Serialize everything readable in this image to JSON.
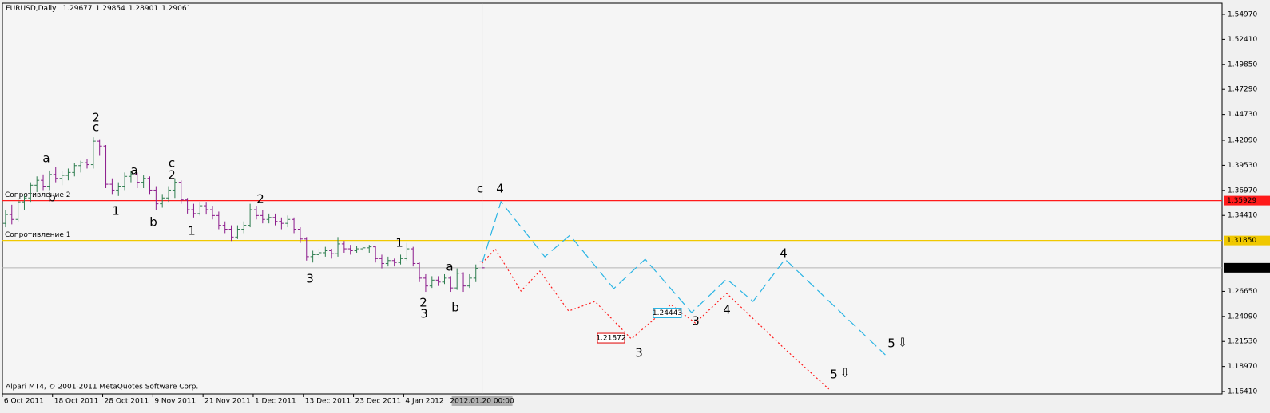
{
  "chart_data": {
    "type": "ohlc",
    "symbol": "EURUSD,Daily",
    "footer": "Alpari MT4, © 2001-2011 MetaQuotes Software Corp.",
    "up_color": "#2e7d4f",
    "down_color": "#8b1a8b",
    "xlim": [
      -0.5,
      194
    ],
    "ylim": [
      1.1617,
      1.5611
    ],
    "yticks": [
      {
        "value": 1.5497,
        "label": "1.54970"
      },
      {
        "value": 1.5241,
        "label": "1.52410"
      },
      {
        "value": 1.4985,
        "label": "1.49850"
      },
      {
        "value": 1.4729,
        "label": "1.47290"
      },
      {
        "value": 1.4473,
        "label": "1.44730"
      },
      {
        "value": 1.4209,
        "label": "1.42090"
      },
      {
        "value": 1.3953,
        "label": "1.39530"
      },
      {
        "value": 1.3697,
        "label": "1.36970"
      },
      {
        "value": 1.3441,
        "label": "1.34410"
      },
      {
        "value": 1.2665,
        "label": "1.26650"
      },
      {
        "value": 1.2409,
        "label": "1.24090"
      },
      {
        "value": 1.2153,
        "label": "1.21530"
      },
      {
        "value": 1.1897,
        "label": "1.18970"
      },
      {
        "value": 1.1641,
        "label": "1.16410"
      }
    ],
    "xticks": [
      {
        "value": 0,
        "label": "6 Oct 2011"
      },
      {
        "value": 8,
        "label": "18 Oct 2011"
      },
      {
        "value": 16,
        "label": "28 Oct 2011"
      },
      {
        "value": 24,
        "label": "9 Nov 2011"
      },
      {
        "value": 32,
        "label": "21 Nov 2011"
      },
      {
        "value": 40,
        "label": "1 Dec 2011"
      },
      {
        "value": 48,
        "label": "13 Dec 2011"
      },
      {
        "value": 56,
        "label": "23 Dec 2011"
      },
      {
        "value": 64,
        "label": "4 Jan 2012"
      }
    ],
    "cursor": {
      "value": 76,
      "label": "2012.01.20 00:00"
    },
    "bars": [
      [
        1.336,
        1.35,
        1.332,
        1.345
      ],
      [
        1.345,
        1.355,
        1.335,
        1.34
      ],
      [
        1.34,
        1.362,
        1.338,
        1.358
      ],
      [
        1.358,
        1.365,
        1.35,
        1.362
      ],
      [
        1.362,
        1.378,
        1.358,
        1.375
      ],
      [
        1.375,
        1.384,
        1.368,
        1.38
      ],
      [
        1.38,
        1.386,
        1.37,
        1.374
      ],
      [
        1.374,
        1.39,
        1.37,
        1.386
      ],
      [
        1.386,
        1.394,
        1.378,
        1.382
      ],
      [
        1.382,
        1.39,
        1.375,
        1.385
      ],
      [
        1.385,
        1.392,
        1.38,
        1.388
      ],
      [
        1.388,
        1.398,
        1.384,
        1.395
      ],
      [
        1.395,
        1.4,
        1.388,
        1.398
      ],
      [
        1.398,
        1.402,
        1.392,
        1.396
      ],
      [
        1.396,
        1.424,
        1.392,
        1.42
      ],
      [
        1.42,
        1.422,
        1.405,
        1.415
      ],
      [
        1.415,
        1.416,
        1.372,
        1.376
      ],
      [
        1.376,
        1.382,
        1.366,
        1.37
      ],
      [
        1.37,
        1.378,
        1.364,
        1.374
      ],
      [
        1.374,
        1.388,
        1.37,
        1.384
      ],
      [
        1.384,
        1.39,
        1.378,
        1.386
      ],
      [
        1.386,
        1.388,
        1.372,
        1.378
      ],
      [
        1.378,
        1.385,
        1.372,
        1.382
      ],
      [
        1.382,
        1.384,
        1.366,
        1.37
      ],
      [
        1.37,
        1.374,
        1.35,
        1.356
      ],
      [
        1.356,
        1.366,
        1.352,
        1.362
      ],
      [
        1.362,
        1.374,
        1.358,
        1.37
      ],
      [
        1.37,
        1.382,
        1.362,
        1.378
      ],
      [
        1.378,
        1.38,
        1.356,
        1.36
      ],
      [
        1.36,
        1.362,
        1.346,
        1.35
      ],
      [
        1.35,
        1.356,
        1.342,
        1.346
      ],
      [
        1.346,
        1.358,
        1.344,
        1.354
      ],
      [
        1.354,
        1.358,
        1.345,
        1.35
      ],
      [
        1.35,
        1.354,
        1.34,
        1.344
      ],
      [
        1.344,
        1.348,
        1.33,
        1.334
      ],
      [
        1.334,
        1.338,
        1.326,
        1.33
      ],
      [
        1.33,
        1.334,
        1.318,
        1.322
      ],
      [
        1.322,
        1.334,
        1.32,
        1.33
      ],
      [
        1.33,
        1.338,
        1.326,
        1.334
      ],
      [
        1.334,
        1.356,
        1.332,
        1.35
      ],
      [
        1.35,
        1.354,
        1.34,
        1.344
      ],
      [
        1.344,
        1.35,
        1.336,
        1.34
      ],
      [
        1.34,
        1.346,
        1.336,
        1.342
      ],
      [
        1.342,
        1.346,
        1.334,
        1.338
      ],
      [
        1.338,
        1.342,
        1.33,
        1.336
      ],
      [
        1.336,
        1.344,
        1.332,
        1.34
      ],
      [
        1.34,
        1.342,
        1.326,
        1.33
      ],
      [
        1.33,
        1.332,
        1.316,
        1.32
      ],
      [
        1.32,
        1.322,
        1.298,
        1.302
      ],
      [
        1.302,
        1.308,
        1.296,
        1.304
      ],
      [
        1.304,
        1.31,
        1.3,
        1.306
      ],
      [
        1.306,
        1.312,
        1.302,
        1.308
      ],
      [
        1.308,
        1.31,
        1.3,
        1.305
      ],
      [
        1.305,
        1.322,
        1.302,
        1.315
      ],
      [
        1.315,
        1.318,
        1.306,
        1.31
      ],
      [
        1.31,
        1.314,
        1.304,
        1.308
      ],
      [
        1.308,
        1.313,
        1.306,
        1.31
      ],
      [
        1.31,
        1.312,
        1.308,
        1.311
      ],
      [
        1.311,
        1.314,
        1.306,
        1.312
      ],
      [
        1.312,
        1.313,
        1.296,
        1.3
      ],
      [
        1.3,
        1.304,
        1.29,
        1.295
      ],
      [
        1.295,
        1.302,
        1.292,
        1.298
      ],
      [
        1.298,
        1.3,
        1.292,
        1.296
      ],
      [
        1.296,
        1.304,
        1.294,
        1.3
      ],
      [
        1.3,
        1.316,
        1.298,
        1.31
      ],
      [
        1.31,
        1.312,
        1.292,
        1.295
      ],
      [
        1.295,
        1.296,
        1.276,
        1.28
      ],
      [
        1.28,
        1.284,
        1.266,
        1.272
      ],
      [
        1.272,
        1.282,
        1.27,
        1.278
      ],
      [
        1.278,
        1.282,
        1.272,
        1.276
      ],
      [
        1.276,
        1.284,
        1.274,
        1.28
      ],
      [
        1.28,
        1.282,
        1.266,
        1.27
      ],
      [
        1.27,
        1.29,
        1.268,
        1.285
      ],
      [
        1.285,
        1.286,
        1.266,
        1.272
      ],
      [
        1.272,
        1.284,
        1.27,
        1.28
      ],
      [
        1.28,
        1.294,
        1.276,
        1.29
      ],
      [
        1.29677,
        1.29854,
        1.28901,
        1.29061
      ]
    ],
    "levels": [
      {
        "name": "Сопротивление 2",
        "value": 1.35929,
        "color": "#ff1a1a",
        "text_color": "#ffffff"
      },
      {
        "name": "Сопротивление 1",
        "value": 1.3185,
        "value_label": "1.31850",
        "color": "#f0c800",
        "text_color": "#ffffff"
      }
    ],
    "price_line_color": "#b4b4b4",
    "forecasts": [
      {
        "color": "#2ab4e4",
        "dash": "12,6",
        "x": [
          76,
          79,
          86,
          90,
          97,
          102,
          109.4,
          115,
          119.2,
          124.3,
          140.3
        ],
        "values": [
          1.2954,
          1.3581,
          1.3019,
          1.3239,
          1.2693,
          1.2994,
          1.2448,
          1.2791,
          1.2562,
          1.2994,
          1.2016
        ]
      },
      {
        "color": "#ff1a1a",
        "dash": "2,3",
        "x": [
          76,
          78.1,
          82.2,
          85.2,
          89.8,
          94,
          99.8,
          106.1,
          110,
          115,
          124.6,
          131.3
        ],
        "values": [
          1.2954,
          1.31,
          1.2668,
          1.2872,
          1.2464,
          1.2562,
          1.2179,
          1.253,
          1.2342,
          1.2644,
          1.2057,
          1.1666
        ]
      }
    ],
    "price_labels": [
      {
        "value": 1.21872,
        "color": "#e00000"
      },
      {
        "value": 1.24443,
        "color": "#2ab4e4"
      }
    ],
    "annotations": [
      {
        "text": "2",
        "color": "#000000"
      },
      {
        "text": "c",
        "color": "#e0a0d8"
      },
      {
        "text": "a",
        "color": "#e0a0d8"
      },
      {
        "text": "b",
        "color": "#e0a0d8"
      },
      {
        "text": "a",
        "color": "#e0a0d8"
      },
      {
        "text": "c",
        "color": "#e0a0d8"
      },
      {
        "text": "2",
        "color": "#b0b0b0"
      },
      {
        "text": "1",
        "color": "#b0b0b0"
      },
      {
        "text": "b",
        "color": "#e0a0d8"
      },
      {
        "text": "1",
        "color": "#f8c8b0"
      },
      {
        "text": "2",
        "color": "#f8d8c8"
      },
      {
        "text": "3",
        "color": "#f8c0a8"
      },
      {
        "text": "1",
        "color": "#f8d8c8"
      },
      {
        "text": "a",
        "color": "#e0a0d8"
      },
      {
        "text": "2",
        "color": "#f8c8b0"
      },
      {
        "text": "3",
        "color": "#b0b0b0"
      },
      {
        "text": "b",
        "color": "#e0a0d8"
      },
      {
        "text": "c",
        "color": "#e0a0d8"
      },
      {
        "text": "4",
        "color": "#b0b0b0"
      },
      {
        "text": "3",
        "color": "#e00000"
      },
      {
        "text": "3",
        "color": "#2ab4e4"
      },
      {
        "text": "4",
        "color": "#e00000"
      },
      {
        "text": "4",
        "color": "#2ab4e4"
      },
      {
        "text": "5",
        "color": "#2ab4e4"
      },
      {
        "text": "5",
        "color": "#e00000"
      },
      {
        "text": "⇩",
        "color": "#2ab4e4"
      },
      {
        "text": "⇩",
        "color": "#e00000"
      }
    ]
  }
}
